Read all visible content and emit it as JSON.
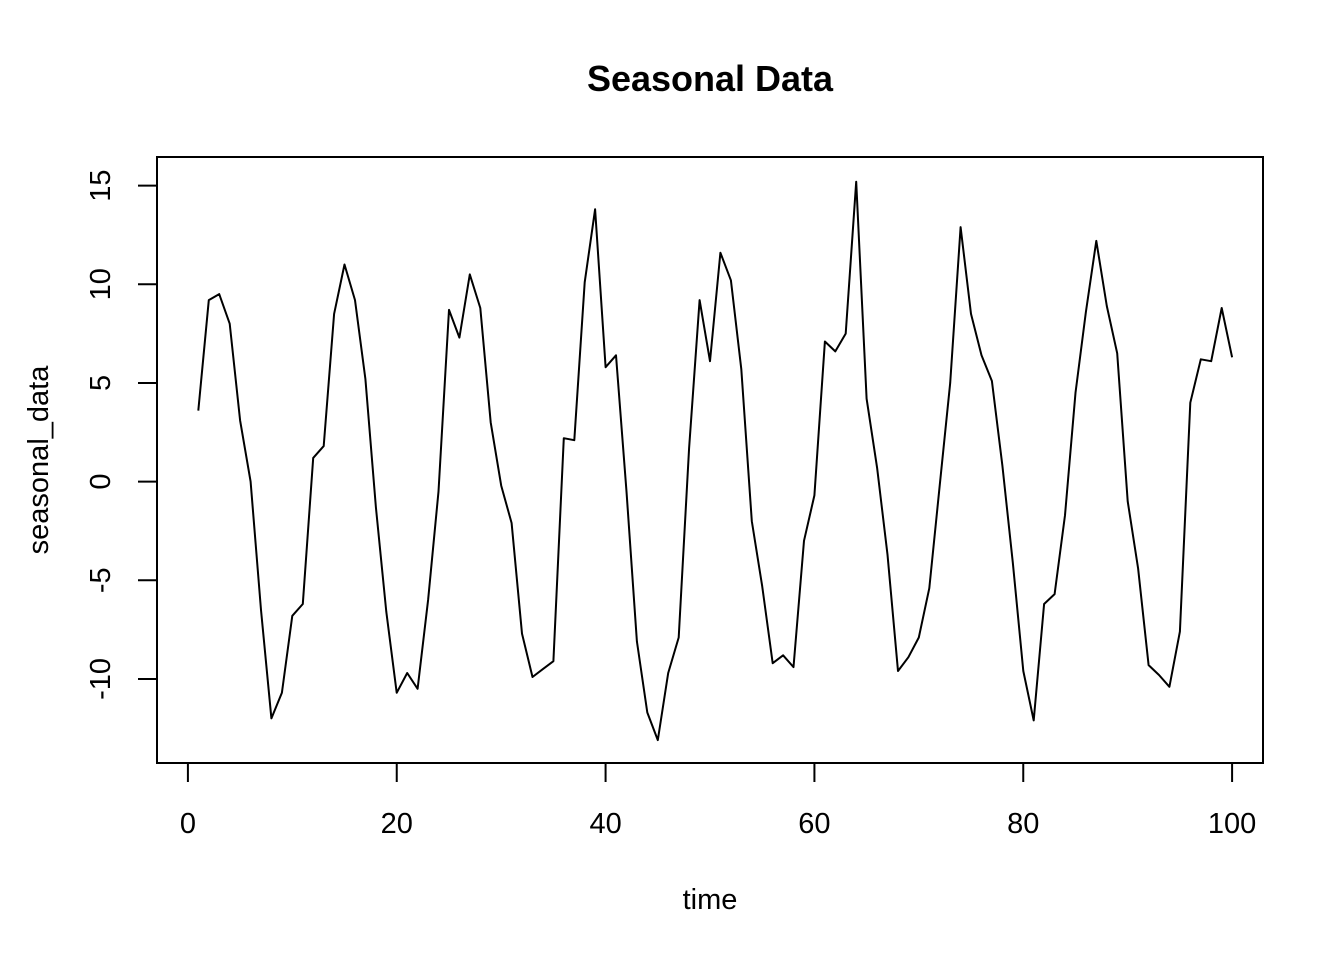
{
  "chart_data": {
    "type": "line",
    "title": "Seasonal Data",
    "xlabel": "time",
    "ylabel": "seasonal_data",
    "xlim": [
      -2.96,
      102.96
    ],
    "ylim": [
      -14.26,
      16.45
    ],
    "x_ticks": [
      0,
      20,
      40,
      60,
      80,
      100
    ],
    "y_ticks": [
      -10,
      -5,
      0,
      5,
      10,
      15
    ],
    "grid": false,
    "legend": "none",
    "line_color": "#000000",
    "series": [
      {
        "x": [
          1,
          2,
          3,
          4,
          5,
          6,
          7,
          8,
          9,
          10,
          11,
          12,
          13,
          14,
          15,
          16,
          17,
          18,
          19,
          20,
          21,
          22,
          23,
          24,
          25,
          26,
          27,
          28,
          29,
          30,
          31,
          32,
          33,
          34,
          35,
          36,
          37,
          38,
          39,
          40,
          41,
          42,
          43,
          44,
          45,
          46,
          47,
          48,
          49,
          50,
          51,
          52,
          53,
          54,
          55,
          56,
          57,
          58,
          59,
          60,
          61,
          62,
          63,
          64,
          65,
          66,
          67,
          68,
          69,
          70,
          71,
          72,
          73,
          74,
          75,
          76,
          77,
          78,
          79,
          80,
          81,
          82,
          83,
          84,
          85,
          86,
          87,
          88,
          89,
          90,
          91,
          92,
          93,
          94,
          95,
          96,
          97,
          98,
          99,
          100
        ],
        "values": [
          3.6,
          9.2,
          9.5,
          8.0,
          3.1,
          0.0,
          -6.5,
          -12.0,
          -10.7,
          -6.8,
          -6.2,
          1.2,
          1.8,
          8.5,
          11.0,
          9.2,
          5.2,
          -1.3,
          -6.6,
          -10.7,
          -9.7,
          -10.5,
          -6.0,
          -0.5,
          8.7,
          7.3,
          10.5,
          8.8,
          3.0,
          -0.2,
          -2.1,
          -7.7,
          -9.9,
          -9.5,
          -9.1,
          2.2,
          2.1,
          10.1,
          13.8,
          5.8,
          6.4,
          -0.5,
          -8.1,
          -11.7,
          -13.1,
          -9.7,
          -7.9,
          1.7,
          9.2,
          6.1,
          11.6,
          10.2,
          5.7,
          -2.0,
          -5.3,
          -9.2,
          -8.8,
          -9.4,
          -3.0,
          -0.7,
          7.1,
          6.6,
          7.5,
          15.2,
          4.2,
          0.7,
          -3.7,
          -9.6,
          -8.9,
          -7.9,
          -5.4,
          -0.2,
          5.0,
          12.9,
          8.5,
          6.4,
          5.1,
          0.8,
          -4.1,
          -9.6,
          -12.1,
          -6.2,
          -5.7,
          -1.7,
          4.5,
          8.6,
          12.2,
          8.9,
          6.5,
          -1.0,
          -4.4,
          -9.3,
          -9.8,
          -10.4,
          -7.6,
          4.0,
          6.2,
          6.1,
          8.8,
          6.3
        ]
      }
    ]
  }
}
